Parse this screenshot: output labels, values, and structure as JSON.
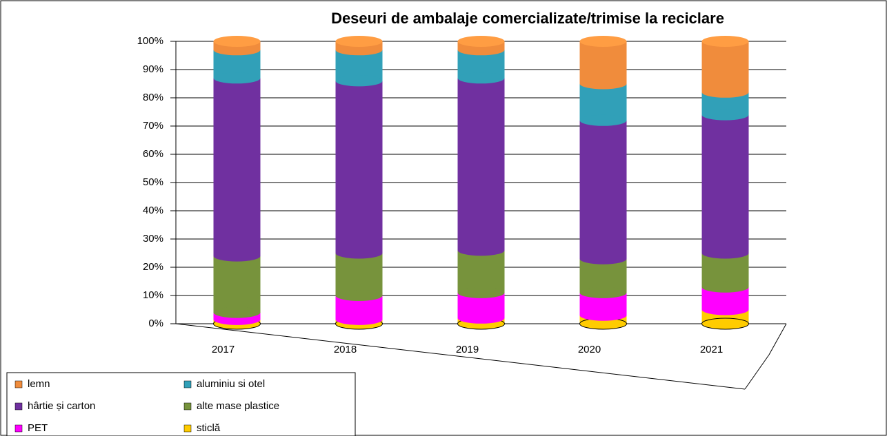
{
  "chart_data": {
    "type": "stacked_cylinder",
    "title": "Deseuri de ambalaje comercializate/trimise la reciclare",
    "categories": [
      "2017",
      "2018",
      "2019",
      "2020",
      "2021"
    ],
    "series": [
      {
        "name": "sticlă",
        "color": "#ffcc00",
        "values": [
          1.5,
          1.5,
          2,
          3,
          5
        ]
      },
      {
        "name": "PET",
        "color": "#ff00ff",
        "values": [
          2.5,
          8.5,
          9,
          8,
          8
        ]
      },
      {
        "name": "alte mase plastice",
        "color": "#77933c",
        "values": [
          20,
          15,
          15,
          12,
          12
        ]
      },
      {
        "name": "hârtie și carton",
        "color": "#7030a0",
        "values": [
          63,
          61,
          61,
          49,
          49
        ]
      },
      {
        "name": "aluminiu si otel",
        "color": "#31a0b8",
        "values": [
          10,
          11,
          10,
          13,
          8
        ]
      },
      {
        "name": "lemn",
        "color": "#f08c3c",
        "values": [
          3,
          3,
          3,
          15,
          18
        ]
      }
    ],
    "ylim": [
      0,
      100
    ],
    "yticks": [
      {
        "value": 0,
        "label": "0%"
      },
      {
        "value": 10,
        "label": "10%"
      },
      {
        "value": 20,
        "label": "20%"
      },
      {
        "value": 30,
        "label": "30%"
      },
      {
        "value": 40,
        "label": "40%"
      },
      {
        "value": 50,
        "label": "50%"
      },
      {
        "value": 60,
        "label": "60%"
      },
      {
        "value": 70,
        "label": "70%"
      },
      {
        "value": 80,
        "label": "80%"
      },
      {
        "value": 90,
        "label": "90%"
      },
      {
        "value": 100,
        "label": "100%"
      }
    ],
    "grid": true
  }
}
